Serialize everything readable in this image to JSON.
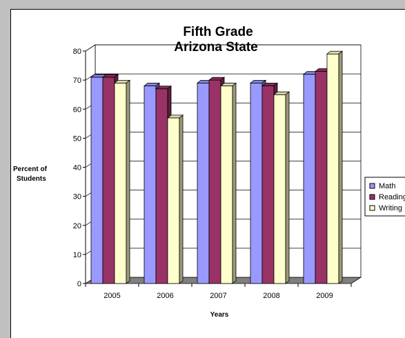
{
  "chart_data": {
    "type": "bar",
    "title": [
      "Fifth Grade",
      "Arizona State"
    ],
    "xlabel": "Years",
    "ylabel": [
      "Percent of",
      "Students"
    ],
    "categories": [
      "2005",
      "2006",
      "2007",
      "2008",
      "2009"
    ],
    "series": [
      {
        "name": "Math",
        "values": [
          71,
          68,
          69,
          69,
          72
        ],
        "color": "#9999ff"
      },
      {
        "name": "Reading",
        "values": [
          71,
          67,
          70,
          68,
          73
        ],
        "color": "#993366"
      },
      {
        "name": "Writing",
        "values": [
          69,
          57,
          68,
          65,
          79
        ],
        "color": "#ffffcc"
      }
    ],
    "ylim": [
      0,
      80
    ],
    "yticks": [
      0,
      10,
      20,
      30,
      40,
      50,
      60,
      70,
      80
    ],
    "grid": true,
    "legend_position": "right",
    "three_d": true
  }
}
